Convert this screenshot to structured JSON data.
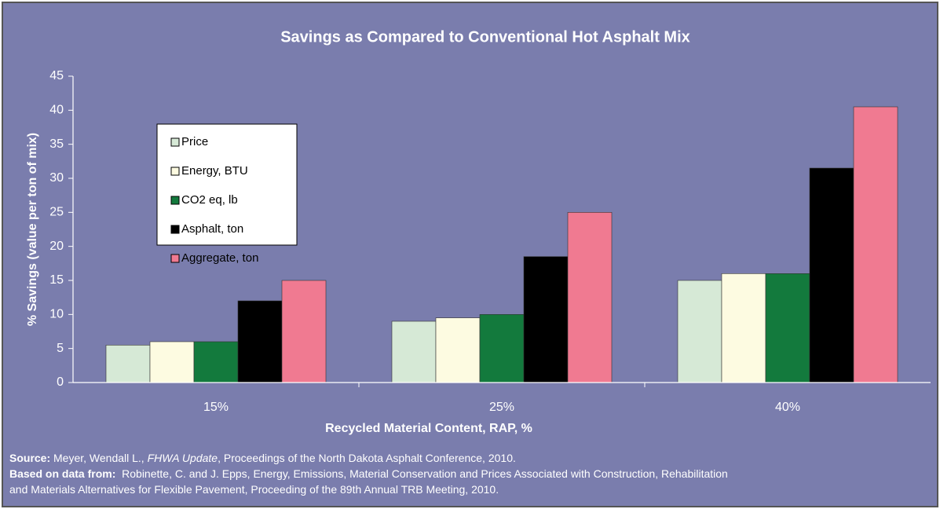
{
  "chart_data": {
    "type": "bar",
    "title": "Savings as Compared to Conventional Hot Asphalt Mix",
    "x_label": "Recycled Material Content, RAP, %",
    "y_label": "% Savings (value per ton of mix)",
    "categories": [
      "15%",
      "25%",
      "40%"
    ],
    "series": [
      {
        "name": "Price",
        "color": "#d6e9d6",
        "values": [
          5.5,
          9,
          15
        ]
      },
      {
        "name": "Energy, BTU",
        "color": "#fdfbe1",
        "values": [
          6,
          9.5,
          16
        ]
      },
      {
        "name": "CO2 eq, lb",
        "color": "#137a3d",
        "values": [
          6,
          10,
          16
        ]
      },
      {
        "name": "Asphalt, ton",
        "color": "#000000",
        "values": [
          12,
          18.5,
          31.5
        ]
      },
      {
        "name": "Aggregate, ton",
        "color": "#f07a91",
        "values": [
          15,
          25,
          40.5
        ]
      }
    ],
    "ylim": [
      0,
      45
    ],
    "yticks": [
      0,
      5,
      10,
      15,
      20,
      25,
      30,
      35,
      40,
      45
    ],
    "grid": false,
    "legend": "upper left"
  },
  "source": {
    "lines": [
      [
        {
          "text": "Source:",
          "style": "bold"
        },
        {
          "text": " Meyer, Wendall L., ",
          "style": "normal"
        },
        {
          "text": "FHWA Update",
          "style": "italic"
        },
        {
          "text": ", Proceedings of the North Dakota Asphalt Conference, 2010.",
          "style": "normal"
        }
      ],
      [
        {
          "text": "Based on data from:",
          "style": "bold"
        },
        {
          "text": "  Robinette, C. and J. Epps, Energy, Emissions, Material Conservation and Prices Associated with Construction, Rehabilitation",
          "style": "normal"
        }
      ],
      [
        {
          "text": "and Materials Alternatives for Flexible Pavement, Proceeding of the 89th Annual TRB Meeting, 2010.",
          "style": "normal"
        }
      ]
    ]
  }
}
